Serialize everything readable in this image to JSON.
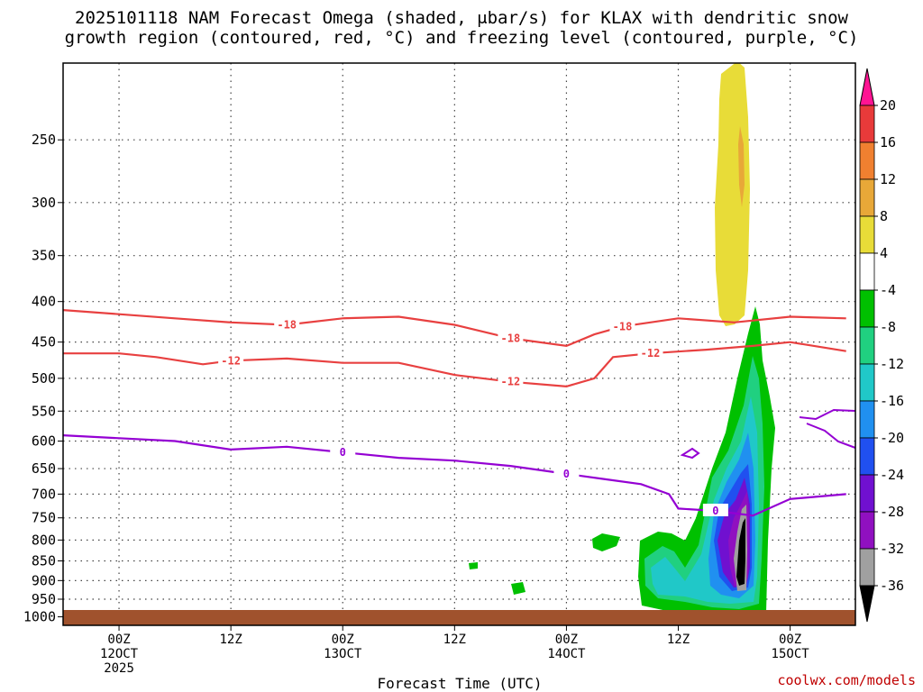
{
  "title_line1": "2025101118 NAM Forecast Omega (shaded, μbar/s) for KLAX with dendritic snow",
  "title_line2": "growth region (contoured, red, °C) and freezing level (contoured, purple, °C)",
  "credit": "coolwx.com/models",
  "chart_data": {
    "type": "time-height cross-section",
    "xlabel": "Forecast Time (UTC)",
    "x_start": "2025-10-11 18Z",
    "x_end": "2025-10-15 07Z",
    "x_ticks": [
      {
        "hour": 6,
        "label1": "00Z",
        "label2": "12OCT",
        "label3": "2025"
      },
      {
        "hour": 18,
        "label1": "12Z",
        "label2": "",
        "label3": ""
      },
      {
        "hour": 30,
        "label1": "00Z",
        "label2": "13OCT",
        "label3": ""
      },
      {
        "hour": 42,
        "label1": "12Z",
        "label2": "",
        "label3": ""
      },
      {
        "hour": 54,
        "label1": "00Z",
        "label2": "14OCT",
        "label3": ""
      },
      {
        "hour": 66,
        "label1": "12Z",
        "label2": "",
        "label3": ""
      },
      {
        "hour": 78,
        "label1": "00Z",
        "label2": "15OCT",
        "label3": ""
      }
    ],
    "y_axis": {
      "units": "hPa",
      "ylim": [
        1025,
        200
      ],
      "log_scale": true
    },
    "y_ticks": [
      250,
      300,
      350,
      400,
      450,
      500,
      550,
      600,
      650,
      700,
      750,
      800,
      850,
      900,
      950,
      1000
    ],
    "grid": true,
    "colorbar": {
      "labels": [
        "20",
        "16",
        "12",
        "8",
        "4",
        "-4",
        "-8",
        "-12",
        "-16",
        "-20",
        "-24",
        "-28",
        "-32",
        "-36"
      ],
      "colors": [
        "#ff1493",
        "#e83a3a",
        "#f08030",
        "#e8a838",
        "#e8dc38",
        "#ffffff",
        "#00c000",
        "#20d080",
        "#20c8c8",
        "#2090f0",
        "#2050f0",
        "#7010d0",
        "#9010c0",
        "#a0a0a0",
        "#000000"
      ]
    },
    "contours": [
      {
        "level": "-18",
        "color": "#e84040",
        "labels": [
          "-18",
          "-18",
          "-18"
        ],
        "points": [
          [
            0,
            410
          ],
          [
            6,
            415
          ],
          [
            12,
            420
          ],
          [
            18,
            425
          ],
          [
            24,
            428
          ],
          [
            30,
            420
          ],
          [
            36,
            418
          ],
          [
            42,
            428
          ],
          [
            48,
            445
          ],
          [
            54,
            455
          ],
          [
            57,
            440
          ],
          [
            60,
            430
          ],
          [
            66,
            420
          ],
          [
            72,
            425
          ],
          [
            78,
            418
          ],
          [
            84,
            420
          ]
        ]
      },
      {
        "level": "-12",
        "color": "#e84040",
        "labels": [
          "-12",
          "-12",
          "-12"
        ],
        "points": [
          [
            0,
            465
          ],
          [
            6,
            465
          ],
          [
            10,
            470
          ],
          [
            15,
            480
          ],
          [
            18,
            475
          ],
          [
            24,
            472
          ],
          [
            30,
            478
          ],
          [
            36,
            478
          ],
          [
            42,
            495
          ],
          [
            48,
            505
          ],
          [
            54,
            512
          ],
          [
            57,
            500
          ],
          [
            59,
            470
          ],
          [
            63,
            465
          ],
          [
            69,
            460
          ],
          [
            74,
            455
          ],
          [
            78,
            450
          ],
          [
            84,
            462
          ]
        ]
      },
      {
        "level": "0",
        "color": "#9400d3",
        "labels": [
          "0",
          "0",
          "0"
        ],
        "points": [
          [
            0,
            590
          ],
          [
            6,
            595
          ],
          [
            12,
            600
          ],
          [
            18,
            615
          ],
          [
            24,
            610
          ],
          [
            30,
            620
          ],
          [
            36,
            630
          ],
          [
            42,
            635
          ],
          [
            48,
            645
          ],
          [
            54,
            660
          ],
          [
            58,
            670
          ],
          [
            62,
            680
          ],
          [
            65,
            700
          ],
          [
            66,
            730
          ],
          [
            70,
            735
          ],
          [
            72,
            740
          ],
          [
            74,
            745
          ],
          [
            78,
            710
          ],
          [
            84,
            700
          ]
        ]
      }
    ],
    "omega_features": [
      {
        "value": "4",
        "description": "upper-level positive omega",
        "hour_range": [
          73.5,
          75.5
        ],
        "pressure_range": [
          200,
          420
        ]
      },
      {
        "value": "-36",
        "description": "strong lower-tropospheric upward motion",
        "hour_range": [
          73,
          75
        ],
        "pressure_range": [
          740,
          960
        ]
      }
    ],
    "surface_fill": {
      "pressure": 1000,
      "color": "#a0522d"
    }
  }
}
